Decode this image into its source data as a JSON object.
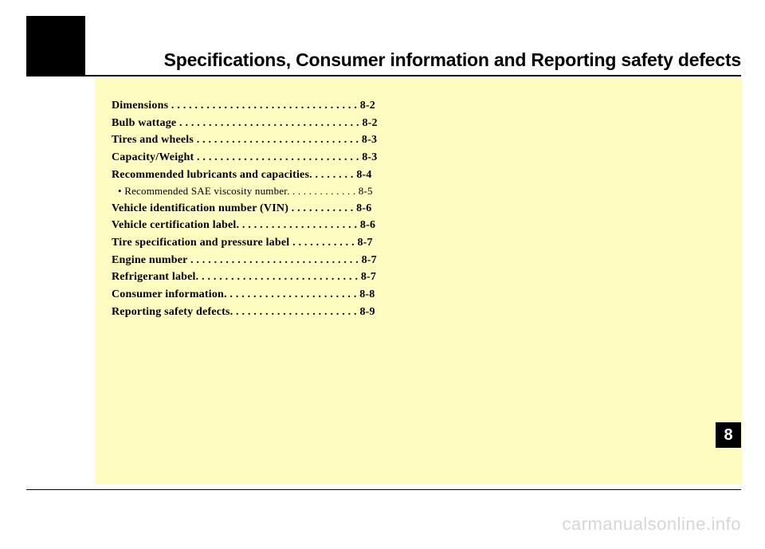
{
  "title": "Specifications, Consumer information and Reporting safety defects",
  "chapter_tab": "8",
  "watermark": "carmanualsonline.info",
  "toc": [
    {
      "type": "main",
      "text": "Dimensions  . . . . . . . . . . . . . . . . . . . . . . . . . . . . . . . . 8-2"
    },
    {
      "type": "main",
      "text": "Bulb wattage . . . . . . . . . . . . . . . . . . . . . . . . . . . . . . . 8-2"
    },
    {
      "type": "main",
      "text": "Tires and wheels . . . . . . . . . . . . . . . . . . . . . . . . . . . . 8-3"
    },
    {
      "type": "main",
      "text": "Capacity/Weight . . . . . . . . . . . . . . . . . . . . . . . . . . . . 8-3"
    },
    {
      "type": "main",
      "text": "Recommended lubricants and capacities. . . . . . . . 8-4"
    },
    {
      "type": "sub",
      "text": "• Recommended SAE viscosity number. . . . . . . . . . . . . 8-5"
    },
    {
      "type": "main",
      "text": "Vehicle identification number (VIN)  . . . . . . . . . . . 8-6"
    },
    {
      "type": "main",
      "text": "Vehicle certification label. . . . . . . . . . . . . . . . . . . . . 8-6"
    },
    {
      "type": "main",
      "text": "Tire specification and pressure label . . . . . . . . . . . 8-7"
    },
    {
      "type": "main",
      "text": "Engine number . . . . . . . . . . . . . . . . . . . . . . . . . . . . . 8-7"
    },
    {
      "type": "main",
      "text": "Refrigerant label. . . . . . . . . . . . . . . . . . . . . . . . . . . . 8-7"
    },
    {
      "type": "main",
      "text": "Consumer information. . . . . . . . . . . . . . . . . . . . . . . 8-8"
    },
    {
      "type": "main",
      "text": "Reporting safety defects. . . . . . . . . . . . . . . . . . . . . . 8-9"
    }
  ]
}
